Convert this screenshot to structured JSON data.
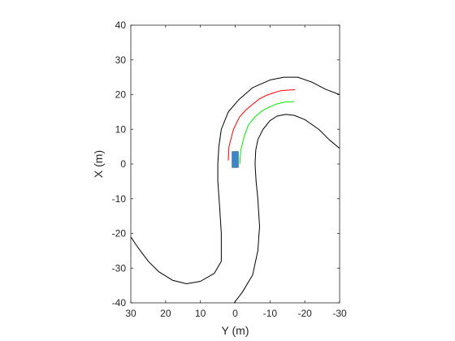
{
  "chart_data": {
    "type": "line",
    "xlabel": "Y (m)",
    "ylabel": "X (m)",
    "xlim": [
      30,
      -30
    ],
    "ylim": [
      -40,
      40
    ],
    "x_reversed": true,
    "grid": false,
    "x_ticks": [
      30,
      20,
      10,
      0,
      -10,
      -20,
      -30
    ],
    "x_tick_labels": [
      "30",
      "20",
      "10",
      "0",
      "-10",
      "-20",
      "-30"
    ],
    "y_ticks": [
      40,
      30,
      20,
      10,
      0,
      -10,
      -20,
      -30,
      -40
    ],
    "y_tick_labels": [
      "40",
      "30",
      "20",
      "10",
      "0",
      "-10",
      "-20",
      "-30",
      "-40"
    ],
    "series": [
      {
        "color": "#000000",
        "points": [
          [
            30,
            -21
          ],
          [
            28,
            -24
          ],
          [
            25,
            -28
          ],
          [
            22,
            -31
          ],
          [
            18,
            -33.5
          ],
          [
            14,
            -34.5
          ],
          [
            10,
            -33.8
          ],
          [
            6,
            -31.5
          ],
          [
            4,
            -28
          ],
          [
            4,
            -20
          ],
          [
            4.5,
            -12
          ],
          [
            5,
            -5
          ],
          [
            5,
            0
          ],
          [
            4.7,
            5
          ],
          [
            4,
            10
          ],
          [
            2,
            15
          ],
          [
            -1,
            18.5
          ],
          [
            -5,
            22
          ],
          [
            -10,
            24.2
          ],
          [
            -14,
            25
          ],
          [
            -18,
            25
          ],
          [
            -22,
            23.6
          ],
          [
            -26,
            21.5
          ],
          [
            -30,
            20
          ]
        ]
      },
      {
        "color": "#000000",
        "points": [
          [
            0.3,
            -40
          ],
          [
            -2,
            -37
          ],
          [
            -5,
            -32
          ],
          [
            -6.5,
            -25
          ],
          [
            -7,
            -18
          ],
          [
            -6.5,
            -10
          ],
          [
            -6,
            -5
          ],
          [
            -5.7,
            0
          ],
          [
            -5.9,
            4
          ],
          [
            -6.5,
            7
          ],
          [
            -8,
            10
          ],
          [
            -10,
            12.5
          ],
          [
            -12,
            13.8
          ],
          [
            -14.5,
            14.3
          ],
          [
            -17,
            14
          ],
          [
            -20,
            12.8
          ],
          [
            -24,
            10
          ],
          [
            -27,
            7
          ],
          [
            -30,
            4.5
          ]
        ]
      },
      {
        "color": "#ff0000",
        "points": [
          [
            2,
            1
          ],
          [
            1.8,
            5
          ],
          [
            0.5,
            10
          ],
          [
            -1.2,
            13.5
          ],
          [
            -3,
            15.5
          ],
          [
            -5,
            17.2
          ],
          [
            -7,
            18.8
          ],
          [
            -9,
            19.8
          ],
          [
            -11,
            20.5
          ],
          [
            -13,
            21.1
          ],
          [
            -15,
            21.3
          ],
          [
            -17.2,
            21.4
          ]
        ]
      },
      {
        "color": "#00ee00",
        "points": [
          [
            -1.3,
            0
          ],
          [
            -1.6,
            4
          ],
          [
            -2.6,
            8
          ],
          [
            -3.8,
            11.3
          ],
          [
            -5.8,
            13.7
          ],
          [
            -7.7,
            15.3
          ],
          [
            -10,
            16.5
          ],
          [
            -12,
            17.3
          ],
          [
            -14,
            17.8
          ],
          [
            -17,
            18
          ]
        ]
      }
    ],
    "vehicle": {
      "center_y": 0,
      "center_x": 1.3,
      "width_y": 1.8,
      "length_x": 4.6,
      "color": "#3d85c6",
      "edge_color": "#1f4e79"
    }
  }
}
